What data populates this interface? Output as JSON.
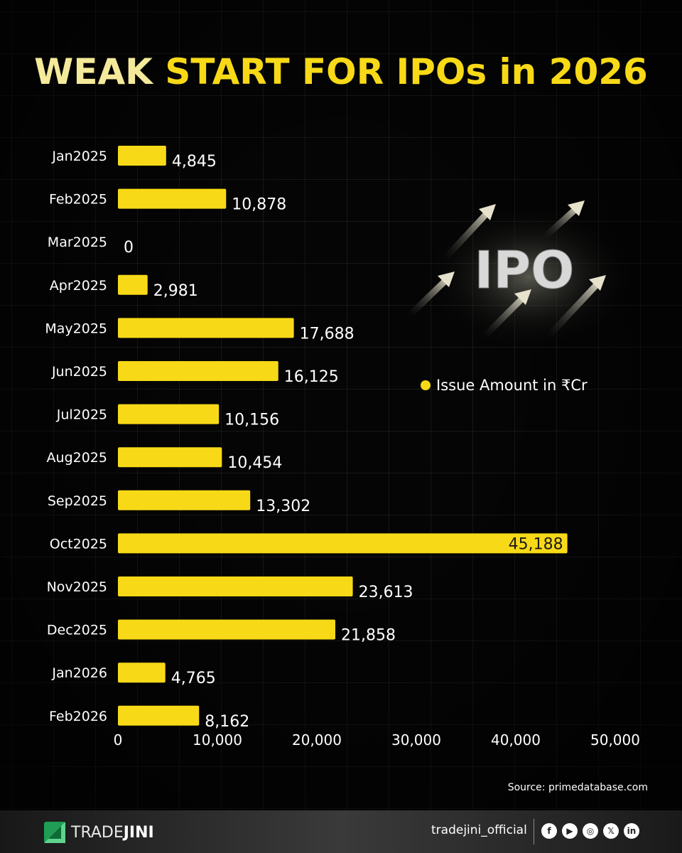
{
  "title": {
    "part1": "WEAK ",
    "part2": "START FOR IPOs in 2026"
  },
  "legend": {
    "label": "Issue Amount in ₹Cr",
    "color": "#f7d917"
  },
  "art": {
    "label": "IPO"
  },
  "source": "Source: primedatabase.com",
  "footer": {
    "brand_part1": "TRADE",
    "brand_part2": "JINI",
    "handle": "tradejini_official",
    "social_icons": [
      "facebook-icon",
      "youtube-icon",
      "instagram-icon",
      "x-icon",
      "linkedin-icon"
    ]
  },
  "colors": {
    "bar": "#f7d917",
    "background": "#050505"
  },
  "chart_data": {
    "type": "bar",
    "orientation": "horizontal",
    "title": "WEAK START FOR IPOs in 2026",
    "categories": [
      "Jan2025",
      "Feb2025",
      "Mar2025",
      "Apr2025",
      "May2025",
      "Jun2025",
      "Jul2025",
      "Aug2025",
      "Sep2025",
      "Oct2025",
      "Nov2025",
      "Dec2025",
      "Jan2026",
      "Feb2026"
    ],
    "values": [
      4845,
      10878,
      0,
      2981,
      17688,
      16125,
      10156,
      10454,
      13302,
      45188,
      23613,
      21858,
      4765,
      8162
    ],
    "value_labels": [
      "4,845",
      "10,878",
      "0",
      "2,981",
      "17,688",
      "16,125",
      "10,156",
      "10,454",
      "13,302",
      "45,188",
      "23,613",
      "21,858",
      "4,765",
      "8,162"
    ],
    "series": [
      {
        "name": "Issue Amount in ₹Cr"
      }
    ],
    "xlim": [
      0,
      50000
    ],
    "xticks": [
      0,
      10000,
      20000,
      30000,
      40000,
      50000
    ],
    "xtick_labels": [
      "0",
      "10,000",
      "20,000",
      "30,000",
      "40,000",
      "50,000"
    ],
    "grid": true,
    "legend_position": "right"
  }
}
